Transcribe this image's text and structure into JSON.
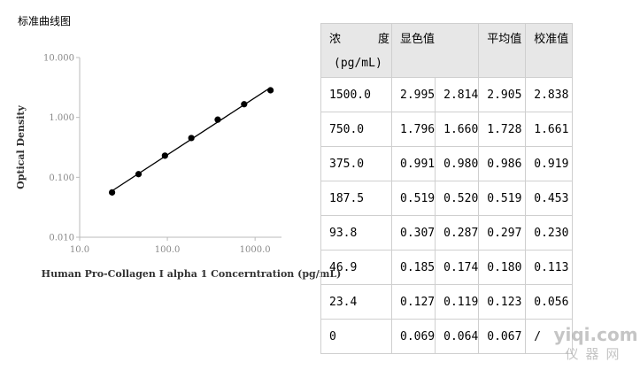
{
  "page_title": "标准曲线图",
  "chart_data": {
    "type": "scatter",
    "scale": "log-log",
    "xlabel": "Human Pro-Collagen I alpha 1 Concerntration (pg/mL)",
    "ylabel": "Optical Density",
    "xlim": [
      10,
      2000
    ],
    "ylim": [
      0.01,
      10
    ],
    "x_ticks": [
      10,
      100,
      1000
    ],
    "x_tick_labels": [
      "10.0",
      "100.0",
      "1000.0"
    ],
    "y_ticks": [
      0.01,
      0.1,
      1,
      10
    ],
    "y_tick_labels": [
      "0.010",
      "0.100",
      "1.000",
      "10.000"
    ],
    "grid": false,
    "line": "fitted",
    "series": [
      {
        "x": [
          23.4,
          46.9,
          93.8,
          187.5,
          375.0,
          750.0,
          1500.0
        ],
        "y": [
          0.056,
          0.113,
          0.23,
          0.453,
          0.919,
          1.661,
          2.838
        ]
      }
    ]
  },
  "table": {
    "header": {
      "conc_part1": "浓",
      "conc_part2": "度",
      "conc_unit": "(pg/mL)",
      "od": "显色值",
      "avg": "平均值",
      "cal": "校准值"
    },
    "rows": [
      {
        "conc": "1500.0",
        "od1": "2.995",
        "od2": "2.814",
        "avg": "2.905",
        "cal": "2.838"
      },
      {
        "conc": "750.0",
        "od1": "1.796",
        "od2": "1.660",
        "avg": "1.728",
        "cal": "1.661"
      },
      {
        "conc": "375.0",
        "od1": "0.991",
        "od2": "0.980",
        "avg": "0.986",
        "cal": "0.919"
      },
      {
        "conc": "187.5",
        "od1": "0.519",
        "od2": "0.520",
        "avg": "0.519",
        "cal": "0.453"
      },
      {
        "conc": "93.8",
        "od1": "0.307",
        "od2": "0.287",
        "avg": "0.297",
        "cal": "0.230"
      },
      {
        "conc": "46.9",
        "od1": "0.185",
        "od2": "0.174",
        "avg": "0.180",
        "cal": "0.113"
      },
      {
        "conc": "23.4",
        "od1": "0.127",
        "od2": "0.119",
        "avg": "0.123",
        "cal": "0.056"
      },
      {
        "conc": "0",
        "od1": "0.069",
        "od2": "0.064",
        "avg": "0.067",
        "cal": "/"
      }
    ]
  },
  "watermark": {
    "main": "yiqi.com",
    "sub": "仪器网"
  }
}
